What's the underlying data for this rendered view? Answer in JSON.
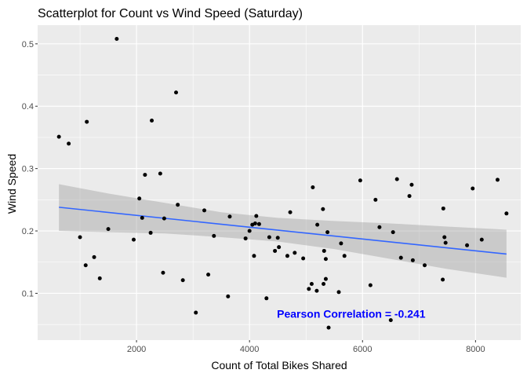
{
  "chart_data": {
    "type": "scatter",
    "title": "Scatterplot for Count vs Wind Speed (Saturday)",
    "xlabel": "Count of Total Bikes Shared",
    "ylabel": "Wind Speed",
    "xlim": [
      250,
      8800
    ],
    "ylim": [
      0.025,
      0.53
    ],
    "x_ticks": [
      2000,
      4000,
      6000,
      8000
    ],
    "x_tick_labels": [
      "2000",
      "4000",
      "6000",
      "8000"
    ],
    "y_ticks": [
      0.1,
      0.2,
      0.3,
      0.4,
      0.5
    ],
    "y_tick_labels": [
      "0.1",
      "0.2",
      "0.3",
      "0.4",
      "0.5"
    ],
    "grid": true,
    "point_color": "#000000",
    "line_color": "#3366ff",
    "band_color": "#999999",
    "panel_color": "#ebebeb",
    "annotation": {
      "text": "Pearson Correlation = -0.241",
      "x": 5800,
      "y": 0.067,
      "color": "#0000ff"
    },
    "trend": {
      "x": [
        627,
        8548
      ],
      "y": [
        0.238,
        0.163
      ],
      "band_x": [
        627,
        1500,
        2500,
        3500,
        4500,
        5500,
        6500,
        7500,
        8548
      ],
      "band_upper": [
        0.275,
        0.26,
        0.245,
        0.23,
        0.221,
        0.216,
        0.212,
        0.207,
        0.202
      ],
      "band_lower": [
        0.2,
        0.198,
        0.196,
        0.19,
        0.183,
        0.171,
        0.155,
        0.139,
        0.125
      ]
    },
    "points": [
      {
        "x": 627,
        "y": 0.351
      },
      {
        "x": 800,
        "y": 0.34
      },
      {
        "x": 1000,
        "y": 0.19
      },
      {
        "x": 1100,
        "y": 0.145
      },
      {
        "x": 1120,
        "y": 0.375
      },
      {
        "x": 1250,
        "y": 0.158
      },
      {
        "x": 1350,
        "y": 0.124
      },
      {
        "x": 1500,
        "y": 0.203
      },
      {
        "x": 1650,
        "y": 0.508
      },
      {
        "x": 1950,
        "y": 0.186
      },
      {
        "x": 2050,
        "y": 0.252
      },
      {
        "x": 2100,
        "y": 0.221
      },
      {
        "x": 2150,
        "y": 0.29
      },
      {
        "x": 2250,
        "y": 0.197
      },
      {
        "x": 2270,
        "y": 0.377
      },
      {
        "x": 2420,
        "y": 0.292
      },
      {
        "x": 2470,
        "y": 0.133
      },
      {
        "x": 2490,
        "y": 0.22
      },
      {
        "x": 2700,
        "y": 0.422
      },
      {
        "x": 2730,
        "y": 0.242
      },
      {
        "x": 2820,
        "y": 0.121
      },
      {
        "x": 3050,
        "y": 0.069
      },
      {
        "x": 3200,
        "y": 0.233
      },
      {
        "x": 3270,
        "y": 0.13
      },
      {
        "x": 3370,
        "y": 0.192
      },
      {
        "x": 3620,
        "y": 0.095
      },
      {
        "x": 3650,
        "y": 0.223
      },
      {
        "x": 3930,
        "y": 0.188
      },
      {
        "x": 4000,
        "y": 0.2
      },
      {
        "x": 4050,
        "y": 0.21
      },
      {
        "x": 4080,
        "y": 0.16
      },
      {
        "x": 4100,
        "y": 0.212
      },
      {
        "x": 4120,
        "y": 0.224
      },
      {
        "x": 4170,
        "y": 0.211
      },
      {
        "x": 4300,
        "y": 0.092
      },
      {
        "x": 4350,
        "y": 0.19
      },
      {
        "x": 4450,
        "y": 0.168
      },
      {
        "x": 4500,
        "y": 0.189
      },
      {
        "x": 4520,
        "y": 0.174
      },
      {
        "x": 4670,
        "y": 0.16
      },
      {
        "x": 4720,
        "y": 0.23
      },
      {
        "x": 4800,
        "y": 0.165
      },
      {
        "x": 4950,
        "y": 0.156
      },
      {
        "x": 5050,
        "y": 0.107
      },
      {
        "x": 5100,
        "y": 0.115
      },
      {
        "x": 5120,
        "y": 0.27
      },
      {
        "x": 5190,
        "y": 0.104
      },
      {
        "x": 5200,
        "y": 0.21
      },
      {
        "x": 5300,
        "y": 0.235
      },
      {
        "x": 5310,
        "y": 0.115
      },
      {
        "x": 5320,
        "y": 0.168
      },
      {
        "x": 5350,
        "y": 0.155
      },
      {
        "x": 5380,
        "y": 0.198
      },
      {
        "x": 5350,
        "y": 0.123
      },
      {
        "x": 5400,
        "y": 0.045
      },
      {
        "x": 5580,
        "y": 0.102
      },
      {
        "x": 5620,
        "y": 0.18
      },
      {
        "x": 5680,
        "y": 0.16
      },
      {
        "x": 5960,
        "y": 0.281
      },
      {
        "x": 6140,
        "y": 0.113
      },
      {
        "x": 6230,
        "y": 0.25
      },
      {
        "x": 6300,
        "y": 0.206
      },
      {
        "x": 6500,
        "y": 0.057
      },
      {
        "x": 6540,
        "y": 0.198
      },
      {
        "x": 6610,
        "y": 0.283
      },
      {
        "x": 6680,
        "y": 0.157
      },
      {
        "x": 6830,
        "y": 0.256
      },
      {
        "x": 6870,
        "y": 0.274
      },
      {
        "x": 6890,
        "y": 0.153
      },
      {
        "x": 7100,
        "y": 0.145
      },
      {
        "x": 7420,
        "y": 0.122
      },
      {
        "x": 7430,
        "y": 0.236
      },
      {
        "x": 7450,
        "y": 0.19
      },
      {
        "x": 7470,
        "y": 0.181
      },
      {
        "x": 7850,
        "y": 0.177
      },
      {
        "x": 7950,
        "y": 0.268
      },
      {
        "x": 8110,
        "y": 0.186
      },
      {
        "x": 8390,
        "y": 0.282
      },
      {
        "x": 8548,
        "y": 0.228
      }
    ]
  }
}
